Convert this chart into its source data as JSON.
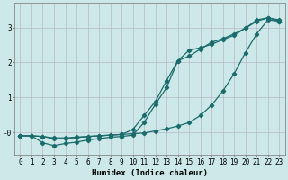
{
  "xlabel": "Humidex (Indice chaleur)",
  "bg_color": "#cce8e8",
  "grid_color": "#b8b8c8",
  "line_color": "#1a6b6b",
  "xlim": [
    -0.5,
    23.5
  ],
  "ylim": [
    -0.65,
    3.7
  ],
  "yticks": [
    0,
    1,
    2,
    3
  ],
  "ytick_labels": [
    "-0",
    "1",
    "2",
    "3"
  ],
  "xticks": [
    0,
    1,
    2,
    3,
    4,
    5,
    6,
    7,
    8,
    9,
    10,
    11,
    12,
    13,
    14,
    15,
    16,
    17,
    18,
    19,
    20,
    21,
    22,
    23
  ],
  "line1_x": [
    0,
    1,
    2,
    3,
    4,
    5,
    6,
    7,
    8,
    9,
    10,
    11,
    12,
    13,
    14,
    15,
    16,
    17,
    18,
    19,
    20,
    21,
    22,
    23
  ],
  "line1_y": [
    -0.1,
    -0.1,
    -0.3,
    -0.38,
    -0.32,
    -0.28,
    -0.22,
    -0.18,
    -0.14,
    -0.12,
    -0.08,
    0.28,
    0.8,
    1.28,
    2.05,
    2.35,
    2.42,
    2.52,
    2.65,
    2.78,
    2.98,
    3.18,
    3.28,
    3.22
  ],
  "line2_x": [
    0,
    1,
    2,
    3,
    4,
    5,
    6,
    7,
    8,
    9,
    10,
    11,
    12,
    13,
    14,
    15,
    16,
    17,
    18,
    19,
    20,
    21,
    22,
    23
  ],
  "line2_y": [
    -0.1,
    -0.1,
    -0.12,
    -0.18,
    -0.18,
    -0.15,
    -0.12,
    -0.1,
    -0.08,
    -0.06,
    0.08,
    0.48,
    0.88,
    1.48,
    2.05,
    2.18,
    2.38,
    2.58,
    2.68,
    2.82,
    2.98,
    3.22,
    3.28,
    3.18
  ],
  "line3_x": [
    0,
    1,
    2,
    3,
    4,
    5,
    6,
    7,
    8,
    9,
    10,
    11,
    12,
    13,
    14,
    15,
    16,
    17,
    18,
    19,
    20,
    21,
    22,
    23
  ],
  "line3_y": [
    -0.1,
    -0.1,
    -0.12,
    -0.16,
    -0.16,
    -0.14,
    -0.12,
    -0.1,
    -0.08,
    -0.06,
    -0.04,
    -0.02,
    0.04,
    0.1,
    0.18,
    0.28,
    0.48,
    0.78,
    1.18,
    1.68,
    2.28,
    2.82,
    3.22,
    3.18
  ],
  "xlabel_fontsize": 6.5,
  "tick_fontsize": 5.5
}
